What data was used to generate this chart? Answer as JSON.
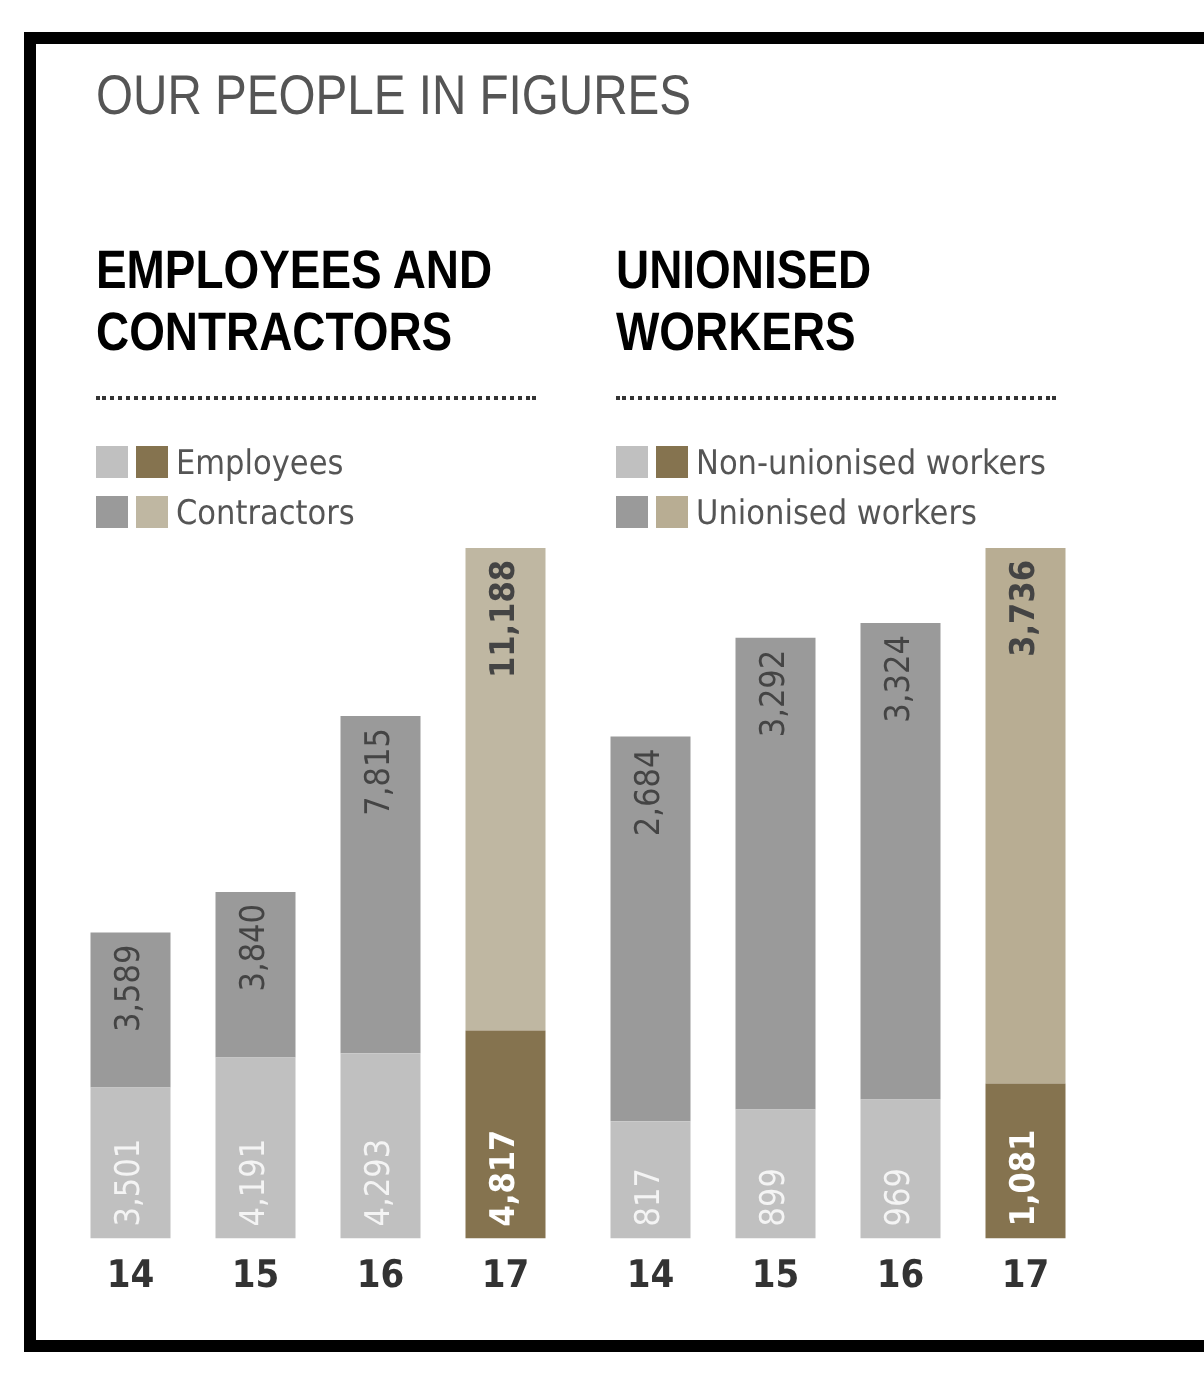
{
  "chart_data": [
    {
      "type": "bar",
      "title": "EMPLOYEES AND CONTRACTORS",
      "annotations": [
        "OUR PEOPLE IN FIGURES"
      ],
      "stacked": true,
      "legend": "top left",
      "categories": [
        "14",
        "15",
        "16",
        "17"
      ],
      "series": [
        {
          "name": "Employees",
          "colors": [
            "#c0c0c0",
            "#c0c0c0",
            "#c0c0c0",
            "#85734f"
          ],
          "values": [
            3501,
            4191,
            4293,
            4817
          ],
          "value_labels": [
            "3,501",
            "4,191",
            "4,293",
            "4,817"
          ]
        },
        {
          "name": "Contractors",
          "colors": [
            "#9a9a9a",
            "#9a9a9a",
            "#9a9a9a",
            "#bfb7a2"
          ],
          "values": [
            3589,
            3840,
            7815,
            11188
          ],
          "value_labels": [
            "3,589",
            "3,840",
            "7,815",
            "11,188"
          ]
        }
      ]
    },
    {
      "type": "bar",
      "title": "UNIONISED WORKERS",
      "stacked": true,
      "legend": "top left",
      "categories": [
        "14",
        "15",
        "16",
        "17"
      ],
      "series": [
        {
          "name": "Non-unionised workers",
          "colors": [
            "#c0c0c0",
            "#c0c0c0",
            "#c0c0c0",
            "#85734f"
          ],
          "values": [
            817,
            899,
            969,
            1081
          ],
          "value_labels": [
            "817",
            "899",
            "969",
            "1,081"
          ]
        },
        {
          "name": "Unionised workers",
          "colors": [
            "#9a9a9a",
            "#9a9a9a",
            "#9a9a9a",
            "#b8ad93"
          ],
          "values": [
            2684,
            3292,
            3324,
            3736
          ],
          "value_labels": [
            "2,684",
            "3,292",
            "3,324",
            "3,736"
          ]
        }
      ]
    }
  ]
}
